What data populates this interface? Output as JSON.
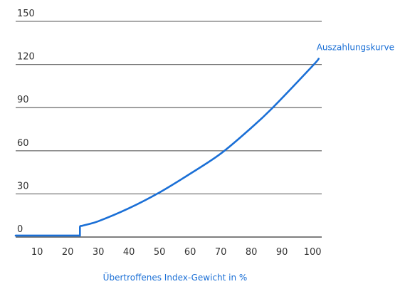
{
  "chart_data": {
    "type": "line",
    "xlabel": "Übertroffenes Index-Gewicht in %",
    "ylabel": "",
    "xlim": [
      3,
      103
    ],
    "ylim": [
      0,
      150
    ],
    "x_ticks": [
      10,
      20,
      30,
      40,
      50,
      60,
      70,
      80,
      90,
      100
    ],
    "y_ticks": [
      0,
      30,
      60,
      90,
      120,
      150
    ],
    "grid": "horizontal",
    "legend": "none",
    "colors": {
      "line": "#1a6fd6",
      "grid": "#777777",
      "text": "#333333"
    },
    "series": [
      {
        "name": "Auszahlungskurve",
        "label_position": "end",
        "x": [
          3,
          24,
          24,
          25,
          30,
          40,
          50,
          60,
          70,
          80,
          87,
          100,
          102
        ],
        "y": [
          1,
          1,
          7,
          8,
          11,
          20,
          31,
          44,
          58,
          76,
          90,
          119,
          124
        ]
      }
    ]
  }
}
